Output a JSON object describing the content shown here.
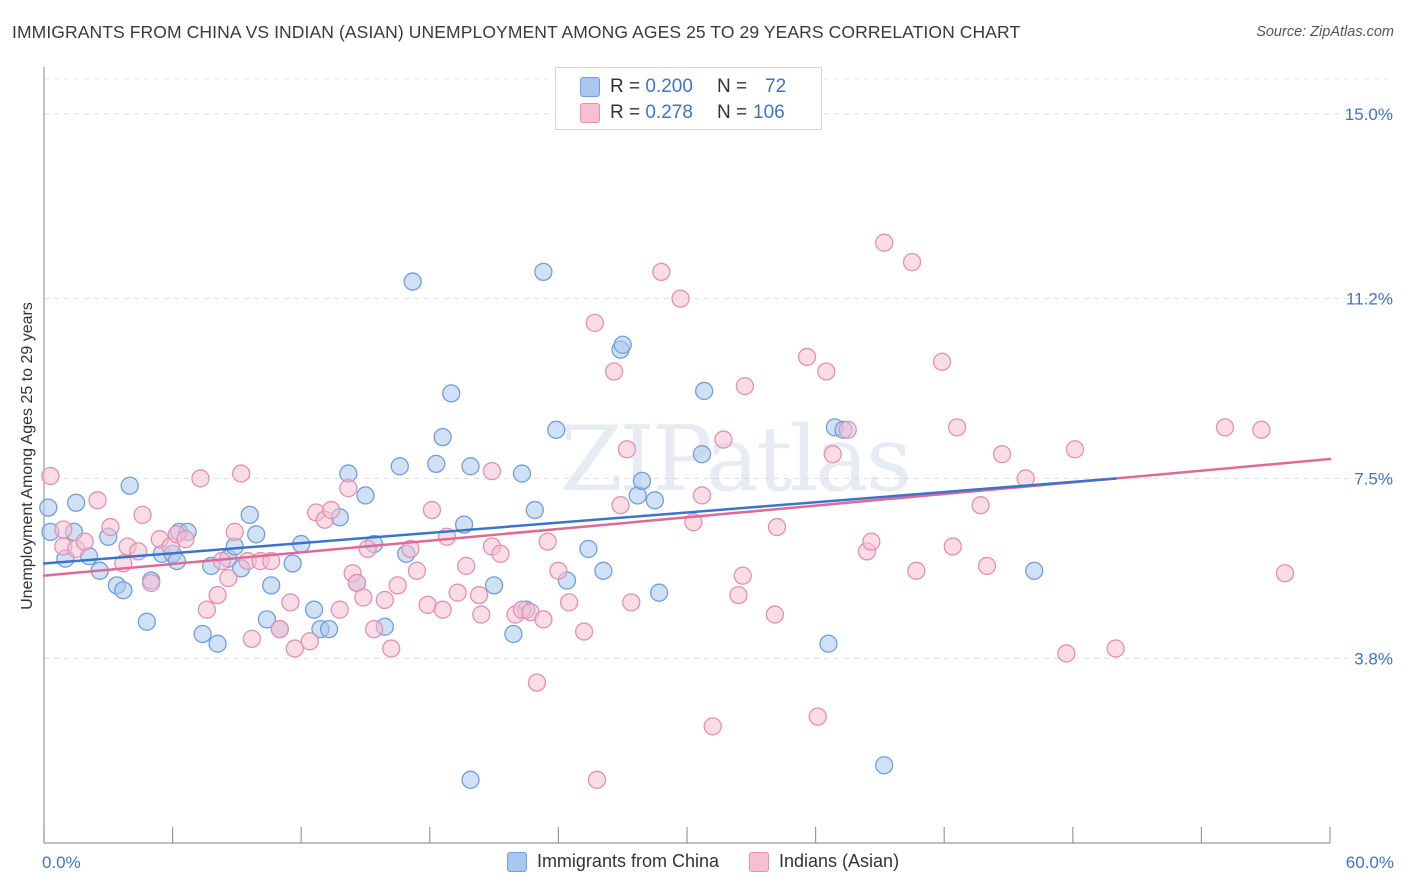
{
  "title": "IMMIGRANTS FROM CHINA VS INDIAN (ASIAN) UNEMPLOYMENT AMONG AGES 25 TO 29 YEARS CORRELATION CHART",
  "source": "Source: ZipAtlas.com",
  "watermark": "ZIPatlas",
  "colors": {
    "china_fill": "#a9c8ef",
    "china_stroke": "#6f9fdc",
    "china_line": "#3a75cc",
    "indian_fill": "#f6bfd2",
    "indian_stroke": "#e690b0",
    "indian_line": "#e06a96",
    "axis_label": "#3f73c6"
  },
  "legend_stats": [
    {
      "r_label": "R =",
      "r_value": "0.200",
      "n_label": "N =",
      "n_value": "72"
    },
    {
      "r_label": "R =",
      "r_value": "0.278",
      "n_label": "N =",
      "n_value": "106"
    }
  ],
  "chart_data": {
    "type": "scatter",
    "title": "IMMIGRANTS FROM CHINA VS INDIAN (ASIAN) UNEMPLOYMENT AMONG AGES 25 TO 29 YEARS CORRELATION CHART",
    "xlabel": "",
    "ylabel": "Unemployment Among Ages 25 to 29 years",
    "xlim": [
      0,
      60
    ],
    "ylim": [
      0,
      15.8
    ],
    "x_tick_labels": [
      "0.0%",
      "60.0%"
    ],
    "y_ticks": [
      3.8,
      7.5,
      11.2,
      15.0
    ],
    "y_tick_labels": [
      "3.8%",
      "7.5%",
      "11.2%",
      "15.0%"
    ],
    "grid": "horizontal dashed",
    "legend_position": "bottom",
    "series": [
      {
        "name": "Immigrants from China",
        "r": 0.2,
        "n": 72,
        "trend": {
          "x0": 0,
          "y0": 5.75,
          "x1": 50,
          "y1": 7.5
        },
        "points": [
          [
            0.2,
            6.9
          ],
          [
            0.3,
            6.4
          ],
          [
            1.0,
            5.85
          ],
          [
            1.4,
            6.4
          ],
          [
            1.5,
            7.0
          ],
          [
            2.1,
            5.9
          ],
          [
            2.6,
            5.6
          ],
          [
            3.0,
            6.3
          ],
          [
            3.4,
            5.3
          ],
          [
            3.7,
            5.2
          ],
          [
            4.0,
            7.35
          ],
          [
            4.8,
            4.55
          ],
          [
            5.0,
            5.4
          ],
          [
            5.5,
            5.95
          ],
          [
            6.0,
            5.95
          ],
          [
            6.2,
            5.8
          ],
          [
            6.3,
            6.4
          ],
          [
            6.7,
            6.4
          ],
          [
            7.4,
            4.3
          ],
          [
            7.8,
            5.7
          ],
          [
            8.1,
            4.1
          ],
          [
            8.6,
            5.85
          ],
          [
            8.9,
            6.1
          ],
          [
            9.2,
            5.65
          ],
          [
            9.6,
            6.75
          ],
          [
            9.9,
            6.35
          ],
          [
            10.4,
            4.6
          ],
          [
            10.6,
            5.3
          ],
          [
            11.0,
            4.4
          ],
          [
            11.6,
            5.75
          ],
          [
            12.0,
            6.15
          ],
          [
            12.6,
            4.8
          ],
          [
            12.9,
            4.4
          ],
          [
            13.3,
            4.4
          ],
          [
            13.8,
            6.7
          ],
          [
            14.2,
            7.6
          ],
          [
            14.6,
            5.35
          ],
          [
            15.0,
            7.15
          ],
          [
            15.4,
            6.15
          ],
          [
            15.9,
            4.45
          ],
          [
            16.6,
            7.75
          ],
          [
            16.9,
            5.95
          ],
          [
            17.2,
            11.55
          ],
          [
            18.3,
            7.8
          ],
          [
            18.6,
            8.35
          ],
          [
            19.0,
            9.25
          ],
          [
            19.6,
            6.55
          ],
          [
            19.9,
            7.75
          ],
          [
            19.9,
            1.3
          ],
          [
            21.0,
            5.3
          ],
          [
            21.9,
            4.3
          ],
          [
            22.3,
            7.6
          ],
          [
            22.5,
            4.8
          ],
          [
            22.9,
            6.85
          ],
          [
            23.3,
            11.75
          ],
          [
            23.9,
            8.5
          ],
          [
            24.4,
            5.4
          ],
          [
            25.4,
            6.05
          ],
          [
            26.1,
            5.6
          ],
          [
            26.9,
            10.15
          ],
          [
            27.0,
            10.25
          ],
          [
            27.7,
            7.15
          ],
          [
            27.9,
            7.45
          ],
          [
            28.5,
            7.05
          ],
          [
            28.7,
            5.15
          ],
          [
            30.7,
            8.0
          ],
          [
            30.8,
            9.3
          ],
          [
            36.6,
            4.1
          ],
          [
            36.9,
            8.55
          ],
          [
            37.3,
            8.5
          ],
          [
            39.2,
            1.6
          ],
          [
            46.2,
            5.6
          ]
        ]
      },
      {
        "name": "Indians (Asian)",
        "r": 0.278,
        "n": 106,
        "trend": {
          "x0": 0,
          "y0": 5.5,
          "x1": 60,
          "y1": 7.9
        },
        "points": [
          [
            0.3,
            7.55
          ],
          [
            0.9,
            6.45
          ],
          [
            0.9,
            6.1
          ],
          [
            1.5,
            6.05
          ],
          [
            1.9,
            6.2
          ],
          [
            2.5,
            7.05
          ],
          [
            3.1,
            6.5
          ],
          [
            3.7,
            5.75
          ],
          [
            3.9,
            6.1
          ],
          [
            4.4,
            6.0
          ],
          [
            4.6,
            6.75
          ],
          [
            5.0,
            5.35
          ],
          [
            5.4,
            6.25
          ],
          [
            5.9,
            6.1
          ],
          [
            6.2,
            6.35
          ],
          [
            6.6,
            6.25
          ],
          [
            7.3,
            7.5
          ],
          [
            7.6,
            4.8
          ],
          [
            8.1,
            5.1
          ],
          [
            8.3,
            5.8
          ],
          [
            8.6,
            5.45
          ],
          [
            8.9,
            6.4
          ],
          [
            9.2,
            7.6
          ],
          [
            9.5,
            5.8
          ],
          [
            9.7,
            4.2
          ],
          [
            10.1,
            5.8
          ],
          [
            10.6,
            5.8
          ],
          [
            11.0,
            4.4
          ],
          [
            11.5,
            4.95
          ],
          [
            11.7,
            4.0
          ],
          [
            12.4,
            4.15
          ],
          [
            12.7,
            6.8
          ],
          [
            13.1,
            6.65
          ],
          [
            13.4,
            6.85
          ],
          [
            13.8,
            4.8
          ],
          [
            14.2,
            7.3
          ],
          [
            14.4,
            5.55
          ],
          [
            14.6,
            5.35
          ],
          [
            14.9,
            5.05
          ],
          [
            15.1,
            6.05
          ],
          [
            15.4,
            4.4
          ],
          [
            15.9,
            5.0
          ],
          [
            16.2,
            4.0
          ],
          [
            16.5,
            5.3
          ],
          [
            17.1,
            6.05
          ],
          [
            17.4,
            5.6
          ],
          [
            17.9,
            4.9
          ],
          [
            18.1,
            6.85
          ],
          [
            18.6,
            4.8
          ],
          [
            18.8,
            6.3
          ],
          [
            19.3,
            5.15
          ],
          [
            19.7,
            5.7
          ],
          [
            20.3,
            5.1
          ],
          [
            20.4,
            4.7
          ],
          [
            20.9,
            7.65
          ],
          [
            20.9,
            6.1
          ],
          [
            21.3,
            5.95
          ],
          [
            22.0,
            4.7
          ],
          [
            22.3,
            4.8
          ],
          [
            22.7,
            4.75
          ],
          [
            23.3,
            4.6
          ],
          [
            23.5,
            6.2
          ],
          [
            24.0,
            5.6
          ],
          [
            24.5,
            4.95
          ],
          [
            25.2,
            4.35
          ],
          [
            25.8,
            1.3
          ],
          [
            26.6,
            9.7
          ],
          [
            26.9,
            6.95
          ],
          [
            27.4,
            4.95
          ],
          [
            28.8,
            11.75
          ],
          [
            29.7,
            11.2
          ],
          [
            30.3,
            6.6
          ],
          [
            30.7,
            7.15
          ],
          [
            31.2,
            2.4
          ],
          [
            31.7,
            8.3
          ],
          [
            32.4,
            5.1
          ],
          [
            32.7,
            9.4
          ],
          [
            34.2,
            6.5
          ],
          [
            34.1,
            4.7
          ],
          [
            35.6,
            10.0
          ],
          [
            36.1,
            2.6
          ],
          [
            36.5,
            9.7
          ],
          [
            36.8,
            8.0
          ],
          [
            37.5,
            8.5
          ],
          [
            38.4,
            6.0
          ],
          [
            38.6,
            6.2
          ],
          [
            39.2,
            12.35
          ],
          [
            40.5,
            11.95
          ],
          [
            40.7,
            5.6
          ],
          [
            41.9,
            9.9
          ],
          [
            42.6,
            8.55
          ],
          [
            42.4,
            6.1
          ],
          [
            43.7,
            6.95
          ],
          [
            44.0,
            5.7
          ],
          [
            44.7,
            8.0
          ],
          [
            45.8,
            7.5
          ],
          [
            47.7,
            3.9
          ],
          [
            48.1,
            8.1
          ],
          [
            50.0,
            4.0
          ],
          [
            55.1,
            8.55
          ],
          [
            56.8,
            8.5
          ],
          [
            57.9,
            5.55
          ],
          [
            23.0,
            3.3
          ],
          [
            25.7,
            10.7
          ],
          [
            27.2,
            8.1
          ],
          [
            32.6,
            5.5
          ]
        ]
      }
    ]
  }
}
